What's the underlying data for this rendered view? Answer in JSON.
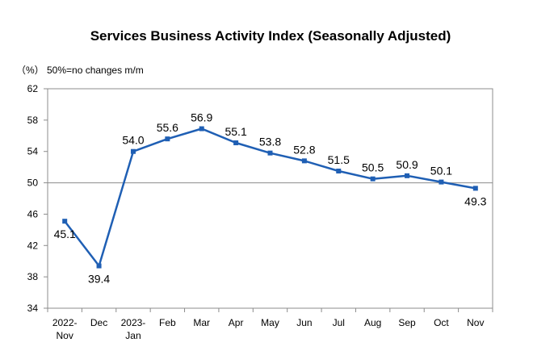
{
  "chart_data": {
    "type": "line",
    "title": "Services Business Activity Index (Seasonally Adjusted)",
    "unit_label": "（%）",
    "note": "50%=no changes m/m",
    "categories": [
      [
        "2022-",
        "Nov"
      ],
      [
        "Dec"
      ],
      [
        "2023-",
        "Jan"
      ],
      [
        "Feb"
      ],
      [
        "Mar"
      ],
      [
        "Apr"
      ],
      [
        "May"
      ],
      [
        "Jun"
      ],
      [
        "Jul"
      ],
      [
        "Aug"
      ],
      [
        "Sep"
      ],
      [
        "Oct"
      ],
      [
        "Nov"
      ]
    ],
    "values": [
      45.1,
      39.4,
      54.0,
      55.6,
      56.9,
      55.1,
      53.8,
      52.8,
      51.5,
      50.5,
      50.9,
      50.1,
      49.3
    ],
    "data_labels": [
      "45.1",
      "39.4",
      "54.0",
      "55.6",
      "56.9",
      "55.1",
      "53.8",
      "52.8",
      "51.5",
      "50.5",
      "50.9",
      "50.1",
      "49.3"
    ],
    "ylim": [
      34,
      62
    ],
    "yticks": [
      34,
      38,
      42,
      46,
      50,
      54,
      58,
      62
    ],
    "reference_line": 50,
    "line_color": "#1f5fb4",
    "grid": false,
    "legend": "none"
  }
}
